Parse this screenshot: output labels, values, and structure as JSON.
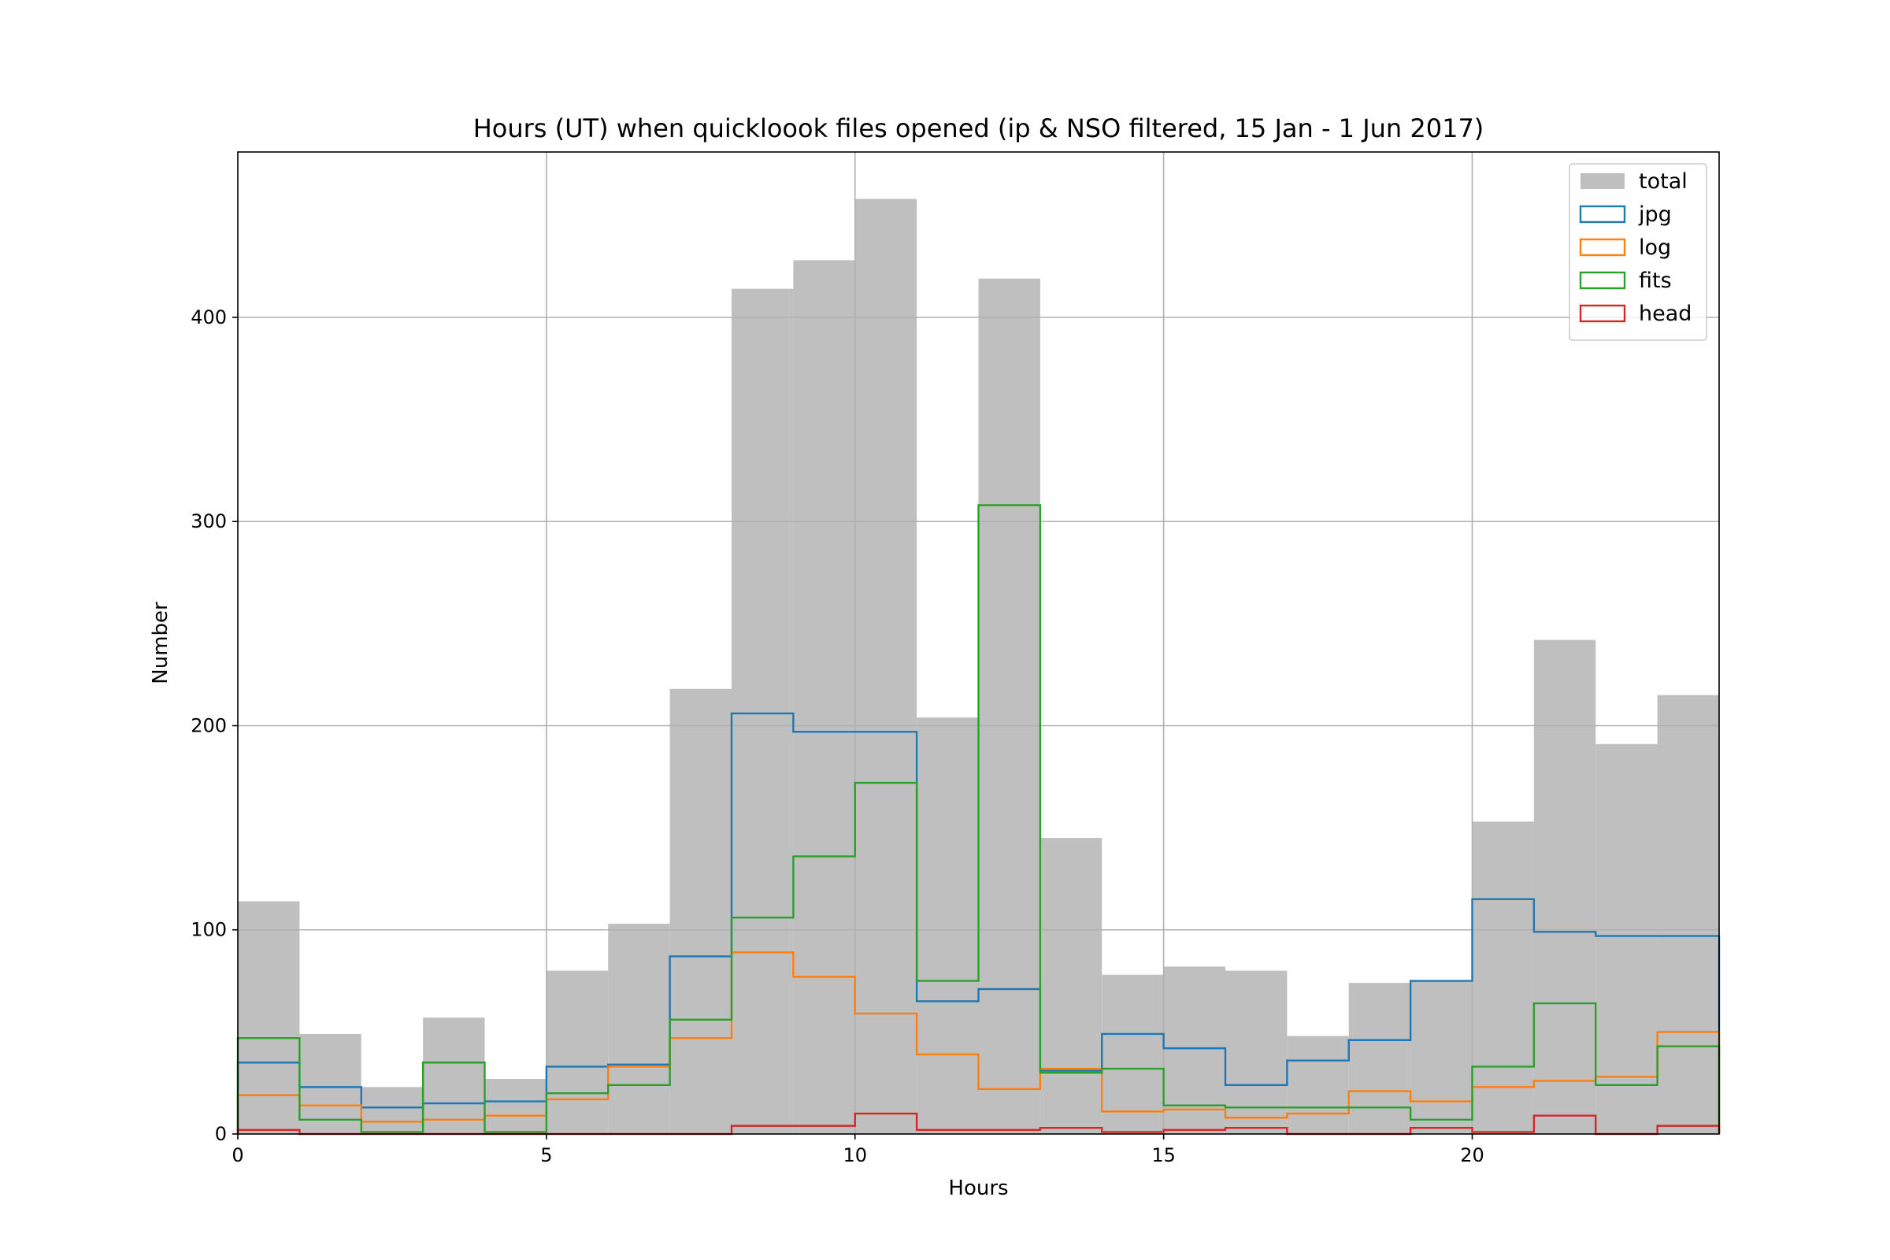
{
  "chart_data": {
    "type": "histogram",
    "title": "Hours (UT) when quickloook files opened (ip & NSO filtered, 15 Jan - 1 Jun 2017)",
    "xlabel": "Hours",
    "ylabel": "Number",
    "xlim": [
      0,
      24
    ],
    "ylim": [
      0,
      481
    ],
    "xticks": [
      0,
      5,
      10,
      15,
      20
    ],
    "yticks": [
      0,
      100,
      200,
      300,
      400
    ],
    "grid": true,
    "legend_position": "top-right",
    "bin_edges": [
      0,
      1,
      2,
      3,
      4,
      5,
      6,
      7,
      8,
      9,
      10,
      11,
      12,
      13,
      14,
      15,
      16,
      17,
      18,
      19,
      20,
      21,
      22,
      23,
      24
    ],
    "series": [
      {
        "name": "total",
        "style": "filled",
        "color": "#bfbfbf",
        "values": [
          114,
          49,
          23,
          57,
          27,
          80,
          103,
          218,
          414,
          428,
          458,
          204,
          419,
          145,
          78,
          82,
          80,
          48,
          74,
          75,
          153,
          242,
          191,
          215
        ]
      },
      {
        "name": "jpg",
        "style": "step",
        "color": "#1f77b4",
        "values": [
          35,
          23,
          13,
          15,
          16,
          33,
          34,
          87,
          206,
          197,
          197,
          65,
          71,
          31,
          49,
          42,
          24,
          36,
          46,
          75,
          115,
          99,
          97,
          97
        ]
      },
      {
        "name": "log",
        "style": "step",
        "color": "#ff7f0e",
        "values": [
          19,
          14,
          6,
          7,
          9,
          17,
          33,
          47,
          89,
          77,
          59,
          39,
          22,
          32,
          11,
          12,
          8,
          10,
          21,
          16,
          23,
          26,
          28,
          50
        ]
      },
      {
        "name": "fits",
        "style": "step",
        "color": "#2ca02c",
        "values": [
          47,
          7,
          1,
          35,
          1,
          20,
          24,
          56,
          106,
          136,
          172,
          75,
          308,
          30,
          32,
          14,
          13,
          13,
          13,
          7,
          33,
          64,
          24,
          43
        ]
      },
      {
        "name": "head",
        "style": "step",
        "color": "#d62728",
        "values": [
          2,
          0,
          0,
          0,
          0,
          0,
          0,
          0,
          4,
          4,
          10,
          2,
          2,
          3,
          1,
          2,
          3,
          0,
          0,
          3,
          1,
          9,
          0,
          4
        ]
      }
    ]
  }
}
